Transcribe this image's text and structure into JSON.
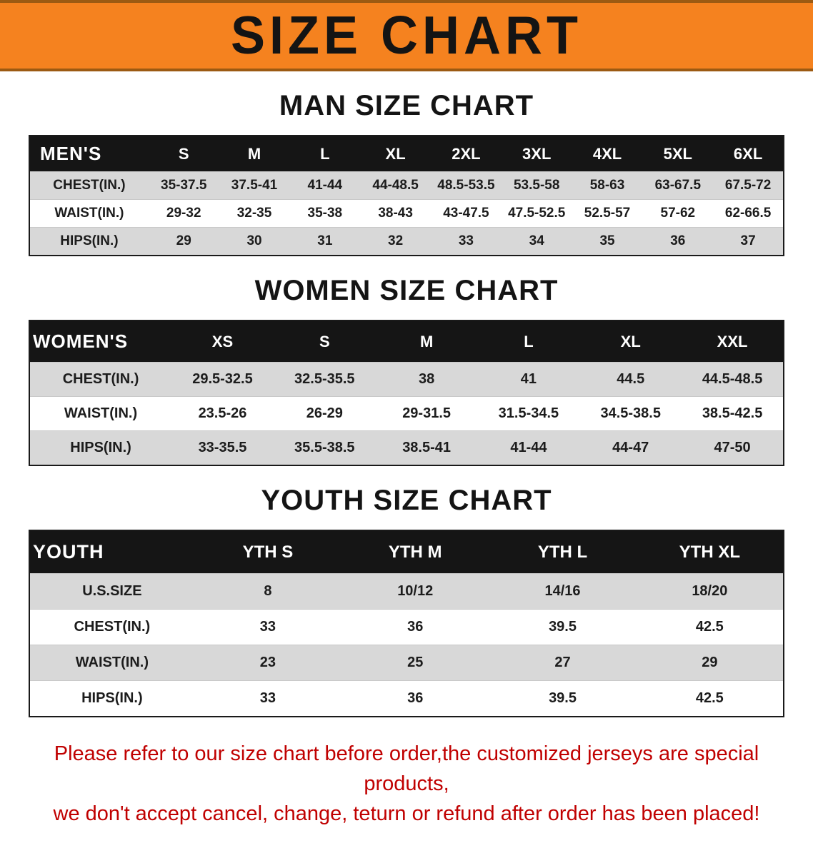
{
  "banner": {
    "title": "SIZE CHART"
  },
  "colors": {
    "banner_bg": "#F5821F",
    "banner_edge": "#9C5A12",
    "table_header_bg": "#151515",
    "row_stripe": "#D8D8D8",
    "footer_text": "#C00000"
  },
  "sections": [
    {
      "id": "men",
      "heading": "MAN SIZE CHART",
      "table": {
        "title": "MEN'S",
        "columns": [
          "S",
          "M",
          "L",
          "XL",
          "2XL",
          "3XL",
          "4XL",
          "5XL",
          "6XL"
        ],
        "rows": [
          {
            "label": "CHEST(IN.)",
            "values": [
              "35-37.5",
              "37.5-41",
              "41-44",
              "44-48.5",
              "48.5-53.5",
              "53.5-58",
              "58-63",
              "63-67.5",
              "67.5-72"
            ]
          },
          {
            "label": "WAIST(IN.)",
            "values": [
              "29-32",
              "32-35",
              "35-38",
              "38-43",
              "43-47.5",
              "47.5-52.5",
              "52.5-57",
              "57-62",
              "62-66.5"
            ]
          },
          {
            "label": "HIPS(IN.)",
            "values": [
              "29",
              "30",
              "31",
              "32",
              "33",
              "34",
              "35",
              "36",
              "37"
            ]
          }
        ]
      }
    },
    {
      "id": "women",
      "heading": "WOMEN SIZE CHART",
      "table": {
        "title": "WOMEN'S",
        "columns": [
          "XS",
          "S",
          "M",
          "L",
          "XL",
          "XXL"
        ],
        "rows": [
          {
            "label": "CHEST(IN.)",
            "values": [
              "29.5-32.5",
              "32.5-35.5",
              "38",
              "41",
              "44.5",
              "44.5-48.5"
            ]
          },
          {
            "label": "WAIST(IN.)",
            "values": [
              "23.5-26",
              "26-29",
              "29-31.5",
              "31.5-34.5",
              "34.5-38.5",
              "38.5-42.5"
            ]
          },
          {
            "label": "HIPS(IN.)",
            "values": [
              "33-35.5",
              "35.5-38.5",
              "38.5-41",
              "41-44",
              "44-47",
              "47-50"
            ]
          }
        ]
      }
    },
    {
      "id": "youth",
      "heading": "YOUTH SIZE CHART",
      "table": {
        "title": "YOUTH",
        "columns": [
          "YTH S",
          "YTH M",
          "YTH L",
          "YTH XL"
        ],
        "rows": [
          {
            "label": "U.S.SIZE",
            "values": [
              "8",
              "10/12",
              "14/16",
              "18/20"
            ]
          },
          {
            "label": "CHEST(IN.)",
            "values": [
              "33",
              "36",
              "39.5",
              "42.5"
            ]
          },
          {
            "label": "WAIST(IN.)",
            "values": [
              "23",
              "25",
              "27",
              "29"
            ]
          },
          {
            "label": "HIPS(IN.)",
            "values": [
              "33",
              "36",
              "39.5",
              "42.5"
            ]
          }
        ]
      }
    }
  ],
  "footer": {
    "lines": [
      "Please refer to our size chart before order,the customized jerseys are special products,",
      "we don't accept cancel, change, teturn or refund after order has been placed!"
    ]
  }
}
